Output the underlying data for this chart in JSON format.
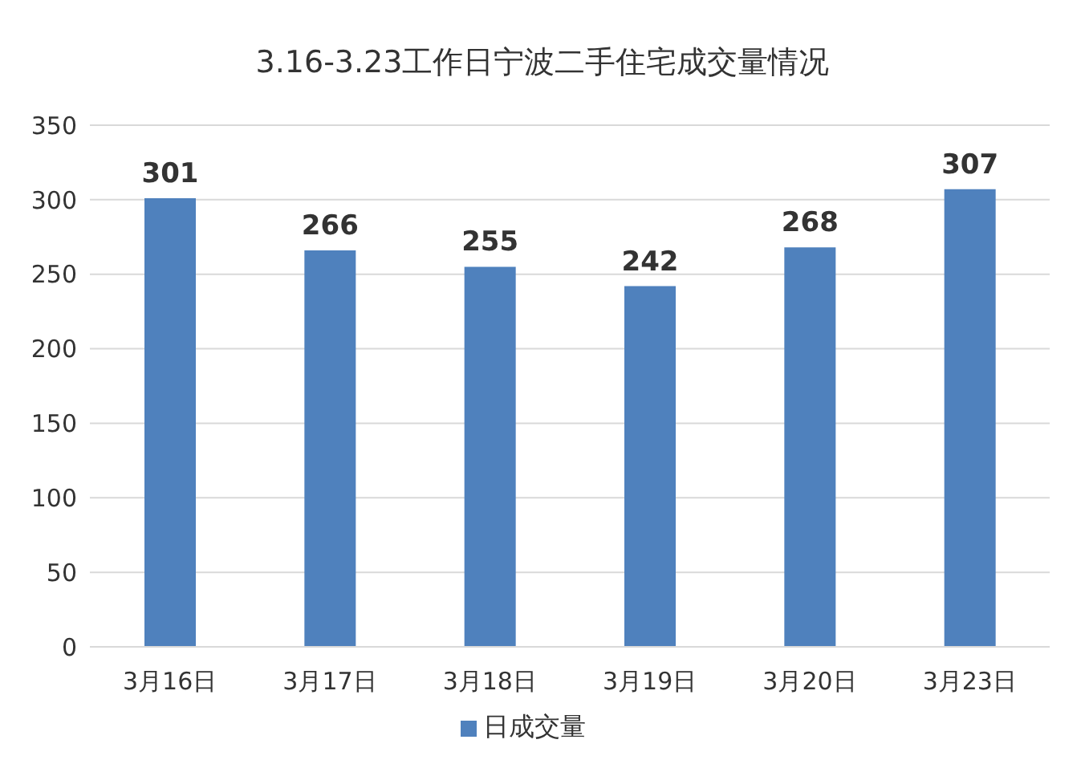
{
  "chart_data": {
    "type": "bar",
    "title": "3.16-3.23工作日宁波二手住宅成交量情况",
    "categories": [
      "3月16日",
      "3月17日",
      "3月18日",
      "3月19日",
      "3月20日",
      "3月23日"
    ],
    "series": [
      {
        "name": "日成交量",
        "color": "#4f81bd",
        "values": [
          301,
          266,
          255,
          242,
          268,
          307
        ]
      }
    ],
    "ylim": [
      0,
      350
    ],
    "yticks": [
      0,
      50,
      100,
      150,
      200,
      250,
      300,
      350
    ],
    "grid": "y",
    "legend": "bottom",
    "data_labels": true
  }
}
